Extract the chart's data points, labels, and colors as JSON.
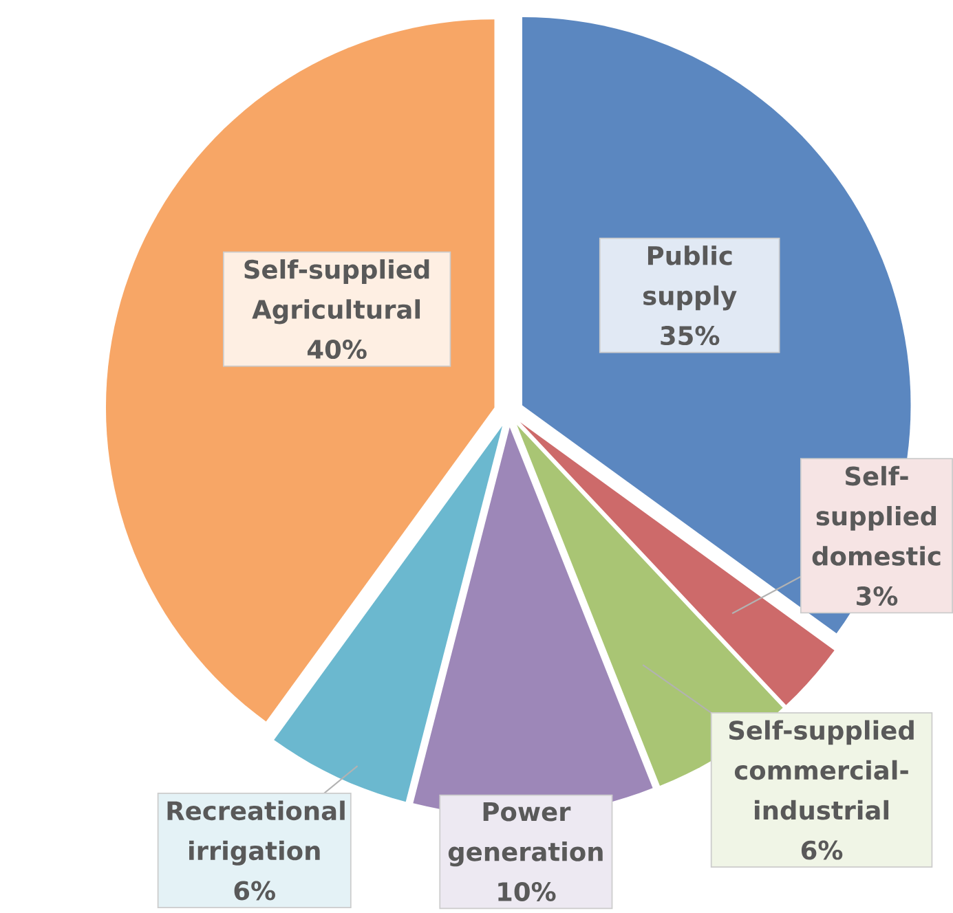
{
  "chart_data": {
    "type": "pie",
    "categories": [
      "Public supply",
      "Self-supplied domestic",
      "Self-supplied commercial-industrial",
      "Power generation",
      "Recreational irrigation",
      "Self-supplied Agricultural"
    ],
    "values": [
      35,
      3,
      6,
      10,
      6,
      40
    ],
    "value_labels": [
      "35%",
      "3%",
      "6%",
      "10%",
      "6%",
      "40%"
    ],
    "colors": [
      "#5b87c0",
      "#cd6a6a",
      "#a9c574",
      "#9d87b8",
      "#6bb8cf",
      "#f7a666"
    ]
  }
}
